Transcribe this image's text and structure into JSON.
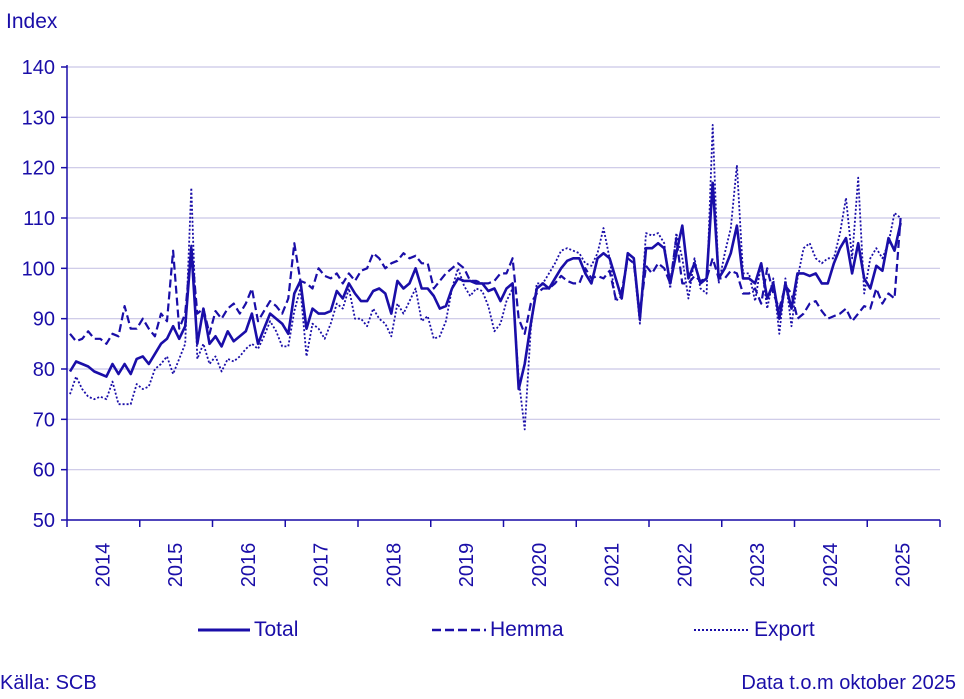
{
  "chart_data": {
    "type": "line",
    "ylabel": "Index",
    "ylim": [
      50,
      140
    ],
    "yticks": [
      50,
      60,
      70,
      80,
      90,
      100,
      110,
      120,
      130,
      140
    ],
    "x_start": "2014-01",
    "x_end": "2025-10",
    "year_labels": [
      "2014",
      "2015",
      "2016",
      "2017",
      "2018",
      "2019",
      "2020",
      "2021",
      "2022",
      "2023",
      "2024",
      "2025"
    ],
    "grid": true,
    "legend_position": "bottom",
    "series": [
      {
        "name": "Total",
        "style": "solid",
        "values": [
          79.5,
          81.5,
          81,
          80.5,
          79.5,
          79,
          78.5,
          81,
          79,
          81,
          79,
          82,
          82.5,
          81,
          83,
          85,
          86,
          88.5,
          86,
          88.5,
          104,
          85,
          92,
          85,
          86.5,
          84.5,
          87.5,
          85.5,
          86.5,
          87.5,
          91,
          85,
          88,
          91,
          90,
          89,
          87,
          95,
          97.5,
          88,
          92,
          91,
          91,
          91.5,
          95.5,
          94,
          97,
          95,
          93.5,
          93.5,
          95.5,
          96,
          95,
          91,
          97.5,
          96,
          97,
          100,
          96,
          96,
          94.5,
          92,
          92.5,
          96,
          98,
          97.5,
          97.5,
          97,
          97,
          95.5,
          96,
          93.5,
          96,
          97,
          76,
          81,
          89,
          96,
          97,
          96,
          98,
          100,
          101.5,
          102,
          102,
          99,
          97,
          102,
          103,
          102,
          98,
          94,
          103,
          102,
          90,
          104,
          104,
          105,
          104,
          97,
          103,
          108.5,
          98,
          101,
          97,
          98,
          117,
          98,
          100,
          103,
          108.5,
          98,
          98,
          97,
          101,
          94,
          97,
          90,
          97,
          92,
          99,
          99,
          98.5,
          99,
          97,
          97,
          101,
          104,
          106,
          99,
          105,
          98,
          96,
          100.5,
          99.5,
          106,
          103.5,
          109
        ]
      },
      {
        "name": "Hemma",
        "style": "dashed",
        "values": [
          87,
          85.5,
          86,
          87.5,
          86,
          86,
          85,
          87,
          86.5,
          92.5,
          88,
          88,
          90,
          88,
          86.5,
          91,
          89.5,
          103.5,
          88,
          91,
          104.5,
          91,
          92,
          87,
          91.5,
          90,
          92,
          93,
          91,
          93,
          96,
          89.5,
          91.5,
          93.5,
          92.5,
          91,
          94,
          105,
          97.5,
          97,
          96,
          100,
          98.5,
          98,
          99,
          97,
          99,
          97.5,
          99.5,
          100,
          103,
          102,
          100,
          101,
          101.5,
          103,
          102,
          102.5,
          101,
          101,
          96,
          97.5,
          99,
          100,
          101,
          100,
          97.5,
          97.5,
          97,
          97,
          97.5,
          99,
          99,
          102,
          90,
          87,
          93,
          95,
          96,
          96,
          97,
          98.5,
          97.5,
          97,
          97,
          100,
          98,
          98.5,
          98,
          99.5,
          94,
          95.5,
          102,
          101,
          91,
          100.5,
          99,
          101,
          100,
          97,
          106,
          97,
          97,
          98.5,
          97.5,
          98,
          102,
          98,
          98,
          99.5,
          99,
          95,
          95,
          96,
          93,
          100,
          95,
          92,
          96.5,
          95,
          90,
          91,
          93,
          93.5,
          91.5,
          90,
          90.5,
          91,
          92,
          89.5,
          91,
          92.5,
          92,
          96,
          93,
          95,
          94,
          110
        ]
      },
      {
        "name": "Export",
        "style": "dotted",
        "values": [
          75,
          78.5,
          76,
          74.5,
          74,
          74.5,
          74,
          77.5,
          73,
          73,
          73,
          77,
          76,
          76.5,
          80,
          81,
          82.5,
          79,
          82,
          85,
          116,
          82,
          85,
          81,
          82.5,
          79.5,
          82,
          81.5,
          82.5,
          84,
          85,
          84,
          86.5,
          89.5,
          87.5,
          84.5,
          84.5,
          91.5,
          96,
          82.5,
          89,
          88,
          86,
          89,
          93,
          92,
          96,
          90,
          90,
          88.5,
          92,
          90,
          89,
          86.5,
          93,
          91,
          93.5,
          96,
          89.5,
          90.5,
          86,
          86.5,
          89.5,
          96,
          100,
          96.5,
          94.5,
          96,
          95.5,
          92.5,
          87.5,
          89,
          93.5,
          96,
          78,
          68,
          88,
          97,
          97,
          99,
          101,
          103.5,
          104,
          103.5,
          103,
          101,
          100.5,
          103,
          108,
          102,
          93.5,
          94.5,
          102,
          101,
          89,
          107,
          106.5,
          107,
          105,
          96,
          107,
          102,
          94,
          102,
          96,
          95,
          128.5,
          97,
          103,
          108,
          120.5,
          99,
          99,
          93.5,
          101,
          92,
          98,
          87,
          98,
          88.5,
          98,
          104,
          105,
          102,
          101,
          102,
          102,
          107,
          114,
          102,
          118,
          95,
          102,
          104,
          102,
          105,
          111,
          110
        ]
      }
    ]
  },
  "legend": {
    "total": "Total",
    "hemma": "Hemma",
    "export": "Export"
  },
  "footer": {
    "source": "Källa: SCB",
    "note": "Data t.o.m oktober 2025"
  },
  "colors": {
    "line": "#1a0ea8",
    "grid": "#c9c6e6"
  }
}
